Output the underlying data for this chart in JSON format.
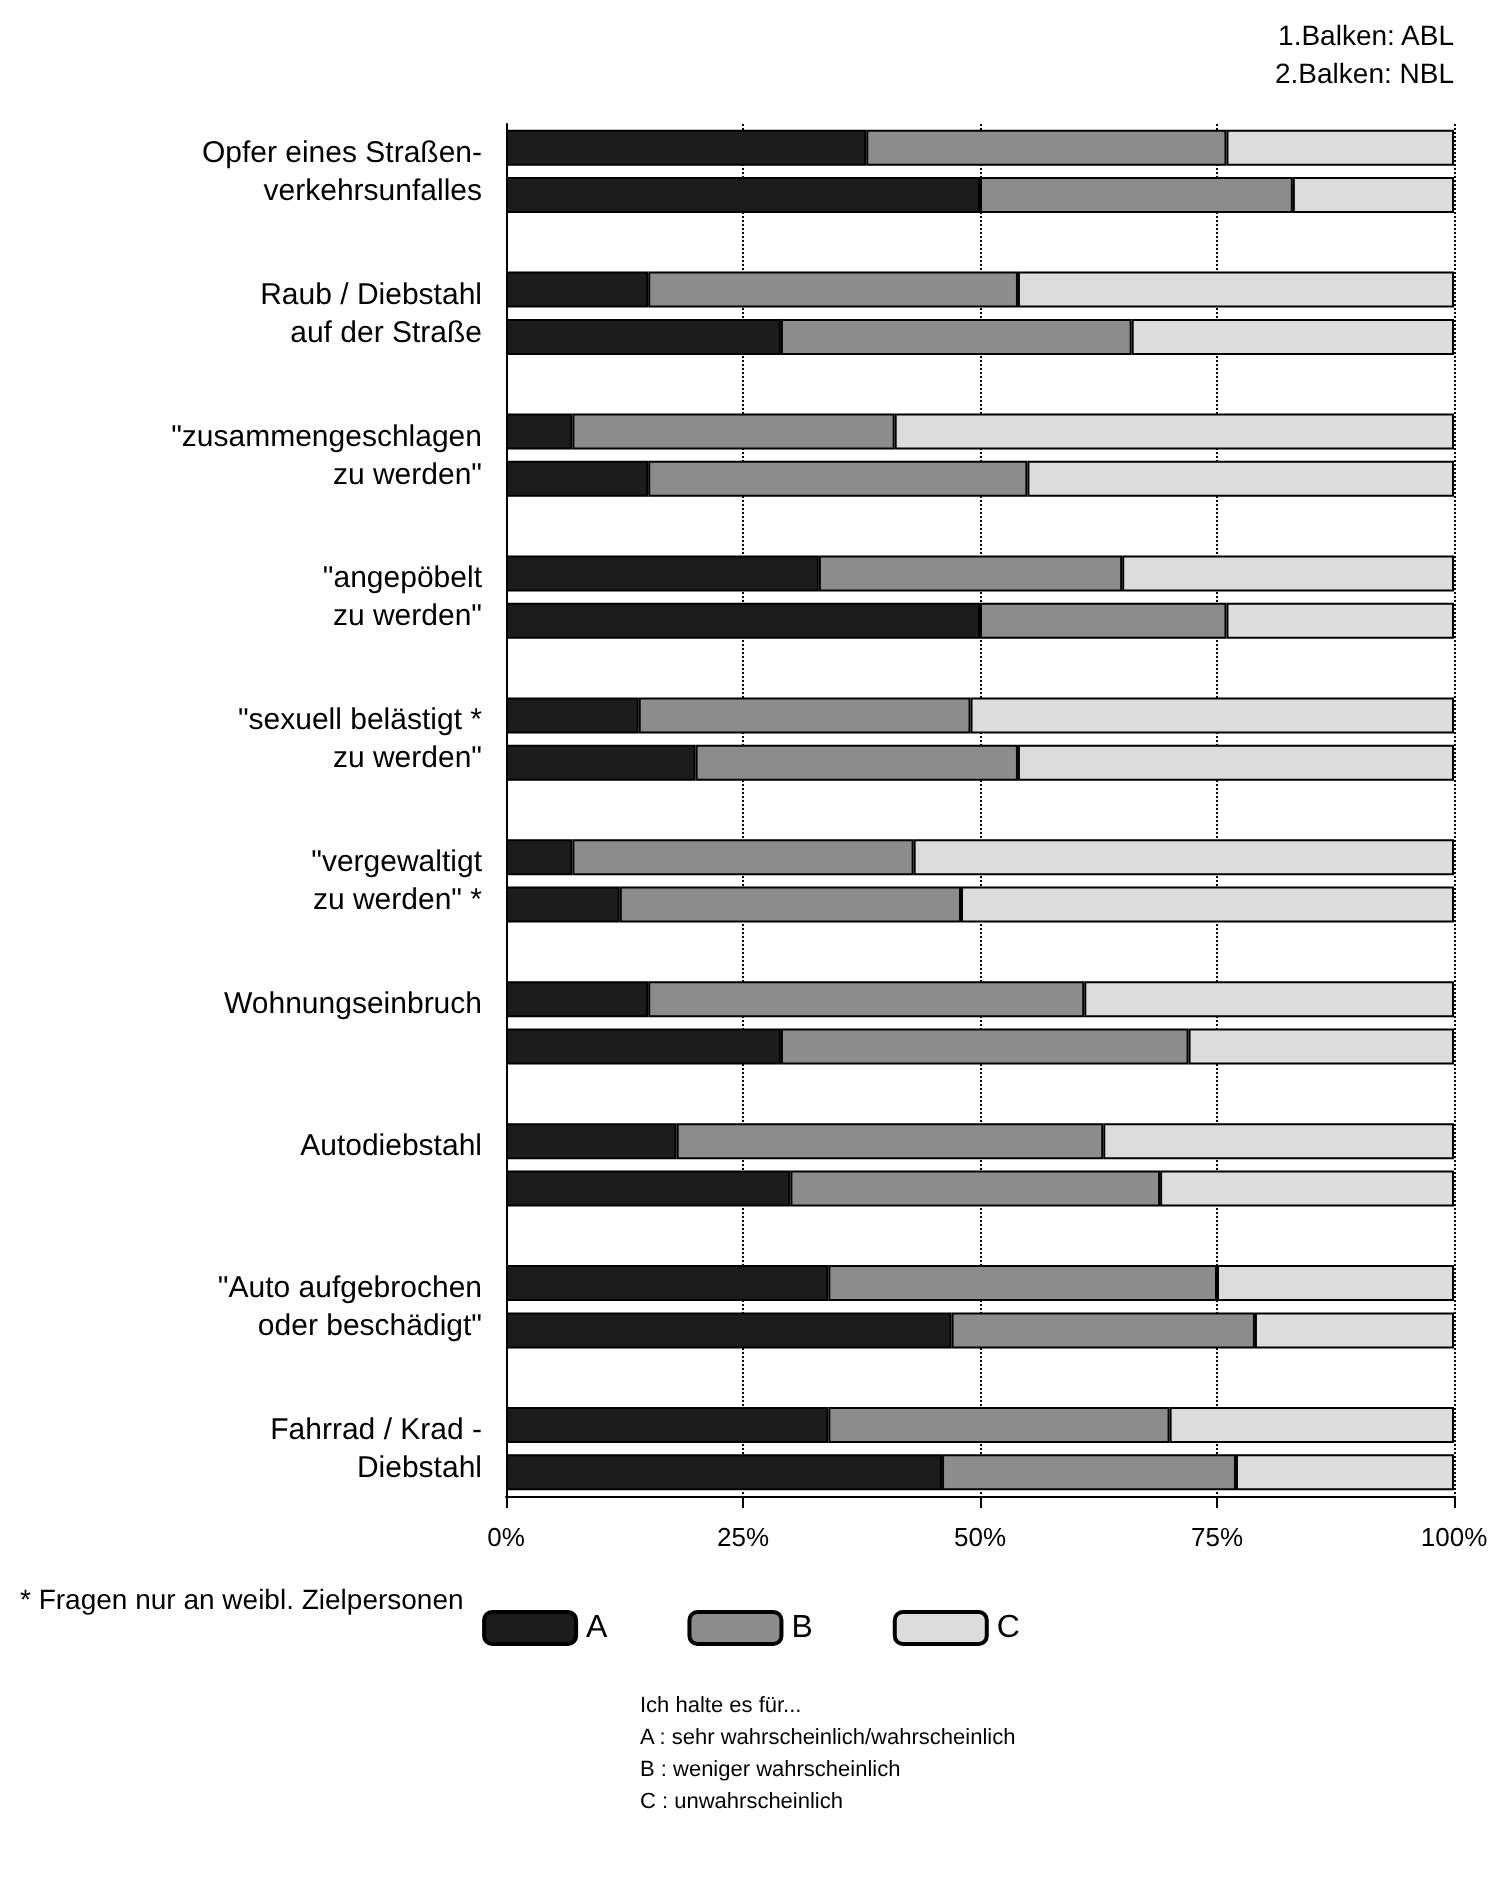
{
  "chart_data": {
    "type": "bar",
    "orientation": "horizontal",
    "stacked": true,
    "categories": [
      "Opfer eines Straßen-\nverkehrsunfalles",
      null,
      null,
      "Raub / Diebstahl\nauf der Straße",
      null,
      null,
      "\"zusammengeschlagen\nzu werden\"",
      null,
      null,
      "\"angepöbelt\nzu werden\"",
      null,
      null,
      "\"sexuell belästigt *\nzu werden\"",
      null,
      null,
      "\"vergewaltigt\nzu werden\" *",
      null,
      null,
      "Wohnungseinbruch",
      null,
      null,
      "Autodiebstahl",
      null,
      null,
      "\"Auto aufgebrochen\noder beschädigt\"",
      null,
      null,
      "Fahrrad / Krad -\nDiebstahl",
      null
    ],
    "series": [
      {
        "name": "A",
        "color": "#1c1c1c",
        "values": [
          38,
          50,
          null,
          15,
          29,
          null,
          7,
          15,
          null,
          33,
          50,
          null,
          14,
          20,
          null,
          7,
          12,
          null,
          15,
          29,
          null,
          18,
          30,
          null,
          34,
          47,
          null,
          34,
          46
        ]
      },
      {
        "name": "B",
        "color": "#8c8c8c",
        "values": [
          38,
          33,
          null,
          39,
          37,
          null,
          34,
          40,
          null,
          32,
          26,
          null,
          35,
          34,
          null,
          36,
          36,
          null,
          46,
          43,
          null,
          45,
          39,
          null,
          41,
          32,
          null,
          36,
          31
        ]
      },
      {
        "name": "C",
        "color": "#dcdcdc",
        "values": [
          24,
          17,
          null,
          46,
          34,
          null,
          59,
          45,
          null,
          35,
          24,
          null,
          51,
          46,
          null,
          57,
          52,
          null,
          39,
          28,
          null,
          37,
          31,
          null,
          25,
          21,
          null,
          30,
          23
        ]
      }
    ],
    "xlim": [
      0,
      100
    ],
    "xticks": [
      {
        "value": 0,
        "label": "0%"
      },
      {
        "value": 25,
        "label": "25%"
      },
      {
        "value": 50,
        "label": "50%"
      },
      {
        "value": 75,
        "label": "75%"
      },
      {
        "value": 100,
        "label": "100%"
      }
    ],
    "grid": "x",
    "legend": "bottom",
    "annotations": [
      "1.Balken: ABL\n2.Balken: NBL",
      "* Fragen nur an weibl. Zielpersonen",
      "Ich halte es für...\nA : sehr wahrscheinlich/wahrscheinlich\nB : weniger wahrscheinlich\nC : unwahrscheinlich"
    ]
  }
}
